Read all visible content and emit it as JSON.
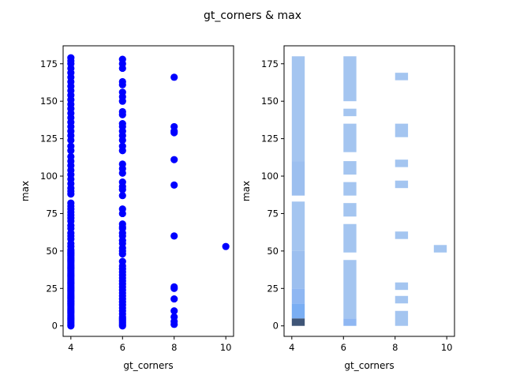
{
  "figure": {
    "suptitle": "gt_corners & max",
    "colors": {
      "scatter": "#0000ff",
      "hist_light": "#a4c5f0",
      "hist_mid": "#7aaef3",
      "hist_dark": "#3f5577",
      "axis": "#000000"
    }
  },
  "chart_data": [
    {
      "type": "scatter",
      "xlabel": "gt_corners",
      "ylabel": "max",
      "xlim": [
        3.7,
        10.3
      ],
      "ylim": [
        -7,
        187
      ],
      "xticks": [
        4,
        6,
        8,
        10
      ],
      "yticks": [
        0,
        25,
        50,
        75,
        100,
        125,
        150,
        175
      ],
      "grid": false,
      "series": [
        {
          "x": 4,
          "y": [
            0,
            1,
            2,
            3,
            4,
            5,
            6,
            7,
            8,
            9,
            10,
            11,
            12,
            13,
            14,
            15,
            16,
            17,
            18,
            19,
            20,
            21,
            22,
            23,
            24,
            25,
            26,
            27,
            28,
            29,
            30,
            31,
            32,
            33,
            34,
            35,
            36,
            37,
            38,
            39,
            40,
            41,
            42,
            43,
            44,
            45,
            46,
            47,
            48,
            49,
            50,
            51,
            53,
            55,
            58,
            60,
            62,
            65,
            67,
            70,
            72,
            74,
            76,
            78,
            80,
            82,
            88,
            90,
            92,
            95,
            98,
            101,
            104,
            107,
            110,
            113,
            117,
            120,
            124,
            127,
            130,
            133,
            136,
            139,
            142,
            145,
            148,
            151,
            154,
            157,
            160,
            163,
            166,
            169,
            172,
            175,
            177,
            179
          ]
        },
        {
          "x": 6,
          "y": [
            0,
            1,
            2,
            3,
            4,
            5,
            6,
            8,
            10,
            12,
            14,
            16,
            18,
            20,
            22,
            24,
            26,
            28,
            30,
            32,
            34,
            36,
            38,
            40,
            43,
            48,
            50,
            52,
            55,
            57,
            60,
            62,
            65,
            66,
            68,
            75,
            78,
            87,
            91,
            93,
            96,
            102,
            105,
            108,
            117,
            120,
            124,
            127,
            130,
            133,
            135,
            141,
            143,
            150,
            153,
            156,
            161,
            163,
            172,
            175,
            178
          ]
        },
        {
          "x": 8,
          "y": [
            1,
            3,
            6,
            10,
            18,
            25,
            26,
            60,
            94,
            111,
            129,
            130,
            133,
            166
          ]
        },
        {
          "x": 10,
          "y": [
            53
          ]
        }
      ]
    },
    {
      "type": "heatmap",
      "xlabel": "gt_corners",
      "ylabel": "max",
      "xlim": [
        3.7,
        10.3
      ],
      "ylim": [
        -7,
        187
      ],
      "xticks": [
        4,
        6,
        8,
        10
      ],
      "yticks": [
        0,
        25,
        50,
        75,
        100,
        125,
        150,
        175
      ],
      "grid": false,
      "bins": [
        {
          "x": [
            4.0,
            4.5
          ],
          "y": [
            0,
            5
          ],
          "level": "dark"
        },
        {
          "x": [
            4.0,
            4.5
          ],
          "y": [
            5,
            15
          ],
          "level": "mid"
        },
        {
          "x": [
            4.0,
            4.5
          ],
          "y": [
            15,
            25
          ],
          "level": "midlight"
        },
        {
          "x": [
            4.0,
            4.5
          ],
          "y": [
            25,
            50
          ],
          "level": "light2"
        },
        {
          "x": [
            4.0,
            4.5
          ],
          "y": [
            50,
            83
          ],
          "level": "light"
        },
        {
          "x": [
            4.0,
            4.5
          ],
          "y": [
            87,
            110
          ],
          "level": "light2"
        },
        {
          "x": [
            4.0,
            4.5
          ],
          "y": [
            110,
            180
          ],
          "level": "light"
        },
        {
          "x": [
            6.0,
            6.5
          ],
          "y": [
            0,
            5
          ],
          "level": "midlight"
        },
        {
          "x": [
            6.0,
            6.5
          ],
          "y": [
            5,
            44
          ],
          "level": "light"
        },
        {
          "x": [
            6.0,
            6.5
          ],
          "y": [
            49,
            68
          ],
          "level": "light"
        },
        {
          "x": [
            6.0,
            6.5
          ],
          "y": [
            73,
            82
          ],
          "level": "light"
        },
        {
          "x": [
            6.0,
            6.5
          ],
          "y": [
            87,
            96
          ],
          "level": "light"
        },
        {
          "x": [
            6.0,
            6.5
          ],
          "y": [
            101,
            110
          ],
          "level": "light"
        },
        {
          "x": [
            6.0,
            6.5
          ],
          "y": [
            116,
            135
          ],
          "level": "light"
        },
        {
          "x": [
            6.0,
            6.5
          ],
          "y": [
            140,
            145
          ],
          "level": "light"
        },
        {
          "x": [
            6.0,
            6.5
          ],
          "y": [
            150,
            180
          ],
          "level": "light"
        },
        {
          "x": [
            8.0,
            8.5
          ],
          "y": [
            0,
            10
          ],
          "level": "light"
        },
        {
          "x": [
            8.0,
            8.5
          ],
          "y": [
            15,
            20
          ],
          "level": "light"
        },
        {
          "x": [
            8.0,
            8.5
          ],
          "y": [
            24,
            29
          ],
          "level": "light"
        },
        {
          "x": [
            8.0,
            8.5
          ],
          "y": [
            58,
            63
          ],
          "level": "light"
        },
        {
          "x": [
            8.0,
            8.5
          ],
          "y": [
            92,
            97
          ],
          "level": "light"
        },
        {
          "x": [
            8.0,
            8.5
          ],
          "y": [
            106,
            111
          ],
          "level": "light"
        },
        {
          "x": [
            8.0,
            8.5
          ],
          "y": [
            126,
            135
          ],
          "level": "light"
        },
        {
          "x": [
            8.0,
            8.5
          ],
          "y": [
            164,
            169
          ],
          "level": "light"
        },
        {
          "x": [
            9.5,
            10.0
          ],
          "y": [
            49,
            54
          ],
          "level": "light"
        }
      ]
    }
  ]
}
